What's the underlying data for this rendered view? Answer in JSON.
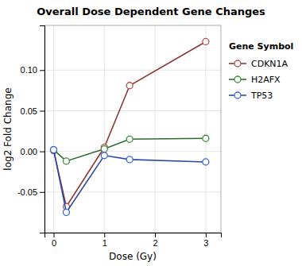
{
  "chart_data": {
    "type": "line",
    "title": "Overall Dose Dependent Gene Changes",
    "x_label": "Dose (Gy)",
    "y_label": "log2 Fold Change",
    "legend_title": "Gene Symbol",
    "x": [
      0,
      0.25,
      1,
      1.5,
      3
    ],
    "series": [
      {
        "name": "CDKN1A",
        "color": "#8B3A3A",
        "values": [
          0.001,
          -0.068,
          0.005,
          0.081,
          0.135
        ]
      },
      {
        "name": "H2AFX",
        "color": "#2E6B2E",
        "values": [
          0.002,
          -0.012,
          0.003,
          0.015,
          0.016
        ]
      },
      {
        "name": "TP53",
        "color": "#2B4BA8",
        "values": [
          0.002,
          -0.075,
          -0.005,
          -0.01,
          -0.013
        ]
      }
    ],
    "xlim": [
      -0.18,
      3.3
    ],
    "ylim": [
      -0.1,
      0.155
    ],
    "xticks": [
      0,
      1,
      2,
      3
    ],
    "yticks": [
      -0.05,
      {
        "value": 0,
        "label": "0.00"
      },
      0.05,
      {
        "value": 0.1,
        "label": "0.10"
      }
    ],
    "grid": true,
    "legend": "right",
    "marker": "circle"
  }
}
